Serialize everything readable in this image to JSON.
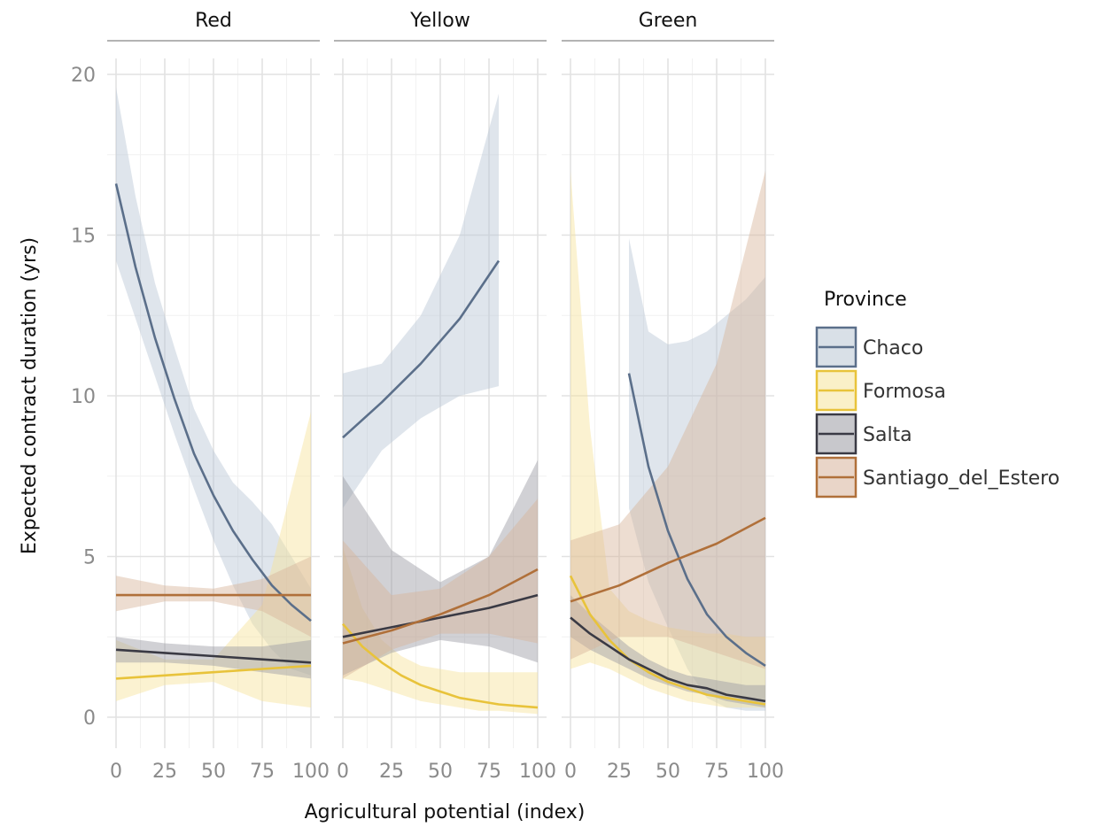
{
  "chart_data": {
    "type": "line",
    "facets": [
      "Red",
      "Yellow",
      "Green"
    ],
    "xlabel": "Agricultural potential (index)",
    "ylabel": "Expected contract duration (yrs)",
    "xlim": [
      0,
      100
    ],
    "ylim": [
      0,
      20
    ],
    "xticks": [
      "0",
      "25",
      "50",
      "75",
      "100"
    ],
    "yticks": [
      "0",
      "5",
      "10",
      "15",
      "20"
    ],
    "grid": true,
    "legend": {
      "title": "Province",
      "position": "right",
      "items": [
        "Chaco",
        "Formosa",
        "Salta",
        "Santiago_del_Estero"
      ]
    },
    "colors": {
      "Chaco": "#5b6f8a",
      "Formosa": "#e8c33b",
      "Salta": "#3a3a44",
      "Santiago_del_Estero": "#b0703a"
    },
    "fills": {
      "Chaco": "#b9c6d4",
      "Formosa": "#f6e39a",
      "Salta": "#9a9aa2",
      "Santiago_del_Estero": "#d7b39a"
    },
    "series": [
      {
        "facet": "Red",
        "name": "Chaco",
        "x": [
          0,
          10,
          20,
          30,
          40,
          50,
          60,
          70,
          80,
          90,
          100
        ],
        "y": [
          16.6,
          14.0,
          11.8,
          9.9,
          8.2,
          6.9,
          5.8,
          4.9,
          4.1,
          3.5,
          3.0
        ],
        "lo": [
          14.2,
          12.4,
          10.6,
          8.8,
          7.1,
          5.5,
          4.1,
          2.9,
          2.1,
          1.5,
          1.3
        ],
        "hi": [
          19.6,
          16.2,
          13.5,
          11.5,
          9.6,
          8.3,
          7.3,
          6.7,
          6.0,
          5.0,
          4.0
        ]
      },
      {
        "facet": "Red",
        "name": "Formosa",
        "x": [
          0,
          25,
          50,
          75,
          100
        ],
        "y": [
          1.2,
          1.3,
          1.4,
          1.5,
          1.6
        ],
        "lo": [
          0.5,
          1.0,
          1.1,
          0.5,
          0.3
        ],
        "hi": [
          2.4,
          1.8,
          1.8,
          3.5,
          9.5
        ]
      },
      {
        "facet": "Red",
        "name": "Salta",
        "x": [
          0,
          25,
          50,
          75,
          100
        ],
        "y": [
          2.1,
          2.0,
          1.9,
          1.8,
          1.7
        ],
        "lo": [
          1.7,
          1.7,
          1.6,
          1.4,
          1.2
        ],
        "hi": [
          2.5,
          2.3,
          2.2,
          2.2,
          2.4
        ]
      },
      {
        "facet": "Red",
        "name": "Santiago_del_Estero",
        "x": [
          0,
          25,
          50,
          75,
          100
        ],
        "y": [
          3.8,
          3.8,
          3.8,
          3.8,
          3.8
        ],
        "lo": [
          3.3,
          3.6,
          3.6,
          3.3,
          2.5
        ],
        "hi": [
          4.4,
          4.1,
          4.0,
          4.3,
          5.0
        ]
      },
      {
        "facet": "Yellow",
        "name": "Chaco",
        "x": [
          0,
          20,
          40,
          60,
          80
        ],
        "y": [
          8.7,
          9.8,
          11.0,
          12.4,
          14.2
        ],
        "lo": [
          6.5,
          8.3,
          9.3,
          10.0,
          10.3
        ],
        "hi": [
          10.7,
          11.0,
          12.5,
          15.0,
          19.4
        ]
      },
      {
        "facet": "Yellow",
        "name": "Formosa",
        "x": [
          0,
          10,
          20,
          30,
          40,
          50,
          60,
          70,
          80,
          90,
          100
        ],
        "y": [
          2.9,
          2.2,
          1.7,
          1.3,
          1.0,
          0.8,
          0.6,
          0.5,
          0.4,
          0.35,
          0.3
        ],
        "lo": [
          1.2,
          1.1,
          0.9,
          0.7,
          0.5,
          0.4,
          0.3,
          0.2,
          0.2,
          0.15,
          0.1
        ],
        "hi": [
          5.3,
          3.4,
          2.4,
          1.9,
          1.6,
          1.5,
          1.4,
          1.4,
          1.4,
          1.4,
          1.4
        ]
      },
      {
        "facet": "Yellow",
        "name": "Salta",
        "x": [
          0,
          25,
          50,
          75,
          100
        ],
        "y": [
          2.5,
          2.8,
          3.1,
          3.4,
          3.8
        ],
        "lo": [
          1.3,
          2.0,
          2.4,
          2.2,
          1.7
        ],
        "hi": [
          7.5,
          5.2,
          4.2,
          5.0,
          8.0
        ]
      },
      {
        "facet": "Yellow",
        "name": "Santiago_del_Estero",
        "x": [
          0,
          25,
          50,
          75,
          100
        ],
        "y": [
          2.3,
          2.7,
          3.2,
          3.8,
          4.6
        ],
        "lo": [
          1.2,
          2.1,
          2.6,
          2.6,
          2.3
        ],
        "hi": [
          5.5,
          3.8,
          4.0,
          5.0,
          6.8
        ]
      },
      {
        "facet": "Green",
        "name": "Chaco",
        "x": [
          30,
          40,
          50,
          60,
          70,
          80,
          90,
          100
        ],
        "y": [
          10.7,
          7.8,
          5.8,
          4.3,
          3.2,
          2.5,
          2.0,
          1.6
        ],
        "lo": [
          6.5,
          4.2,
          2.8,
          1.5,
          0.6,
          0.3,
          0.2,
          0.2
        ],
        "hi": [
          14.9,
          12.0,
          11.6,
          11.7,
          12.0,
          12.5,
          13.0,
          13.7
        ]
      },
      {
        "facet": "Green",
        "name": "Formosa",
        "x": [
          0,
          10,
          20,
          30,
          40,
          50,
          60,
          70,
          80,
          90,
          100
        ],
        "y": [
          4.4,
          3.2,
          2.4,
          1.8,
          1.4,
          1.1,
          0.9,
          0.7,
          0.6,
          0.5,
          0.4
        ],
        "lo": [
          1.5,
          1.7,
          1.5,
          1.2,
          0.9,
          0.7,
          0.5,
          0.4,
          0.3,
          0.3,
          0.3
        ],
        "hi": [
          17.0,
          9.0,
          4.0,
          3.3,
          3.0,
          2.8,
          2.7,
          2.6,
          2.6,
          2.5,
          2.5
        ]
      },
      {
        "facet": "Green",
        "name": "Salta",
        "x": [
          0,
          10,
          20,
          30,
          40,
          50,
          60,
          70,
          80,
          90,
          100
        ],
        "y": [
          3.1,
          2.6,
          2.2,
          1.8,
          1.5,
          1.2,
          1.0,
          0.9,
          0.7,
          0.6,
          0.5
        ],
        "lo": [
          2.5,
          2.1,
          1.8,
          1.5,
          1.2,
          1.0,
          0.8,
          0.7,
          0.5,
          0.4,
          0.3
        ],
        "hi": [
          3.8,
          3.2,
          2.7,
          2.2,
          1.8,
          1.5,
          1.3,
          1.2,
          1.1,
          1.0,
          1.0
        ]
      },
      {
        "facet": "Green",
        "name": "Santiago_del_Estero",
        "x": [
          0,
          25,
          50,
          75,
          100
        ],
        "y": [
          3.6,
          4.1,
          4.8,
          5.4,
          6.2
        ],
        "lo": [
          1.8,
          2.5,
          2.5,
          2.0,
          1.5
        ],
        "hi": [
          5.5,
          6.0,
          7.8,
          11.0,
          17.0
        ]
      }
    ]
  }
}
